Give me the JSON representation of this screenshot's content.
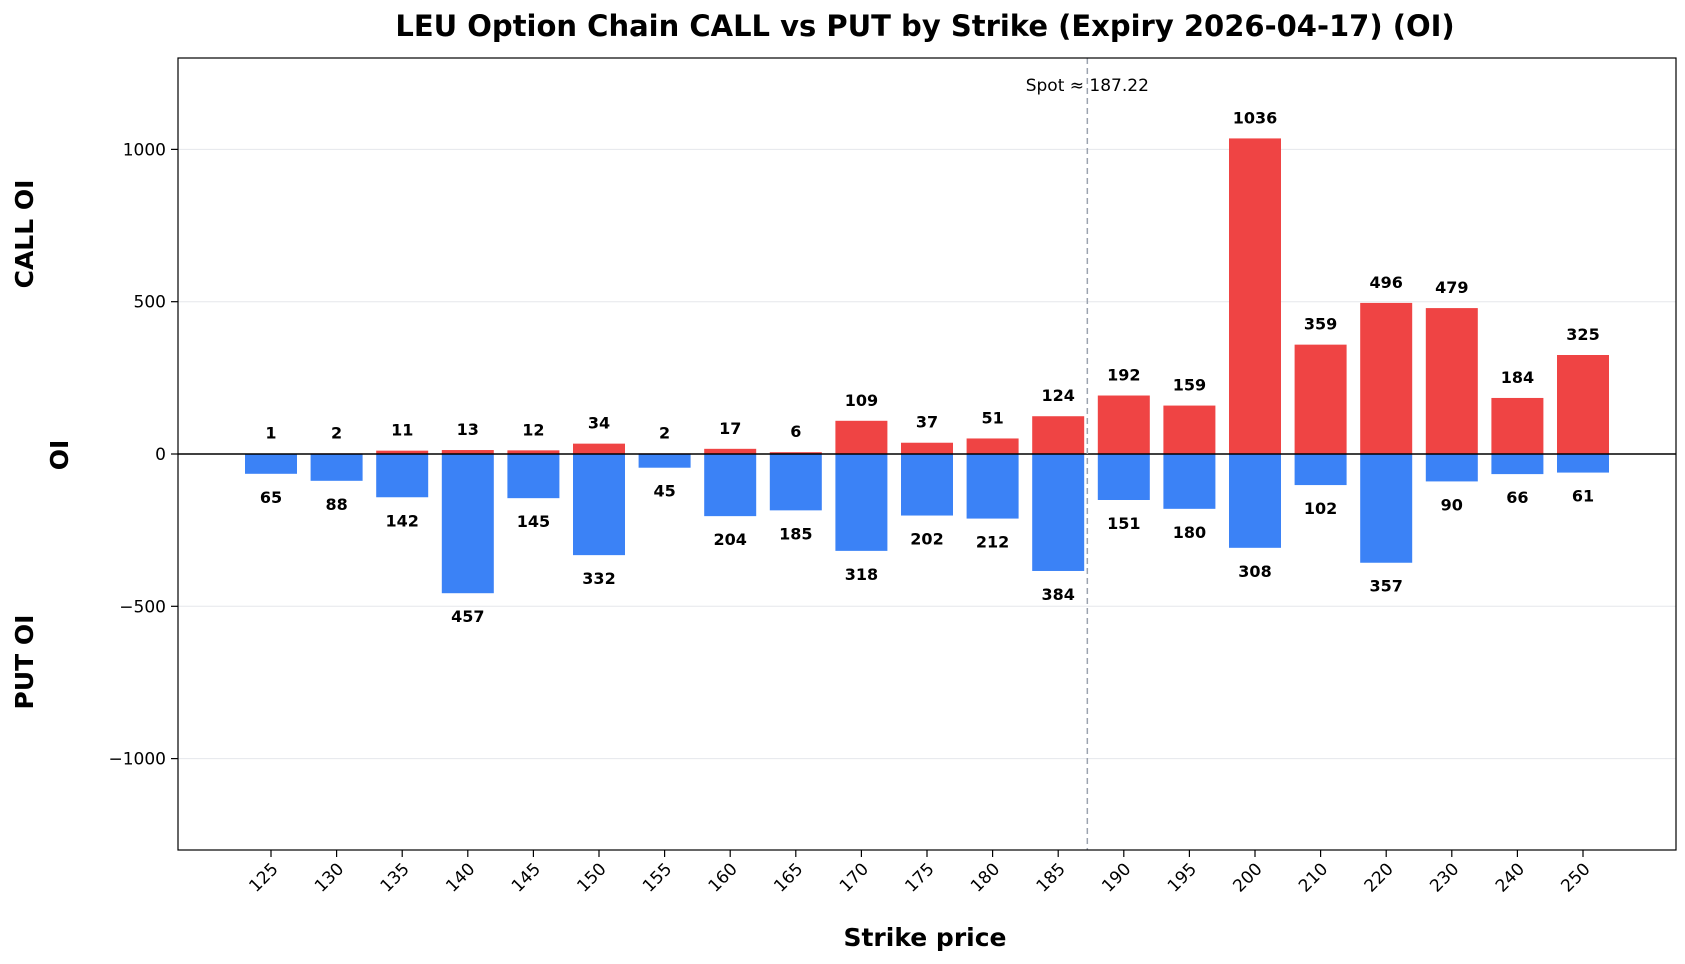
{
  "chart_data": {
    "type": "bar",
    "title": "LEU Option Chain CALL vs PUT by Strike (Expiry 2026-04-17) (OI)",
    "xlabel": "Strike price",
    "ylabel": "OI",
    "ylabel_top": "CALL OI",
    "ylabel_bottom": "PUT OI",
    "ylim": [
      -1300,
      1300
    ],
    "yticks": [
      -1000,
      -500,
      0,
      500,
      1000
    ],
    "grid": true,
    "categories": [
      "125",
      "130",
      "135",
      "140",
      "145",
      "150",
      "155",
      "160",
      "165",
      "170",
      "175",
      "180",
      "185",
      "190",
      "195",
      "200",
      "210",
      "220",
      "230",
      "240",
      "250"
    ],
    "series": [
      {
        "name": "CALL",
        "color": "#ef4444",
        "values": [
          1,
          2,
          11,
          13,
          12,
          34,
          2,
          17,
          6,
          109,
          37,
          51,
          124,
          192,
          159,
          1036,
          359,
          496,
          479,
          184,
          325
        ]
      },
      {
        "name": "PUT",
        "color": "#3b82f6",
        "values": [
          65,
          88,
          142,
          457,
          145,
          332,
          45,
          204,
          185,
          318,
          202,
          212,
          384,
          151,
          180,
          308,
          102,
          357,
          90,
          66,
          61
        ]
      }
    ],
    "spot": {
      "label": "Spot ≈ 187.22",
      "value": 187.22,
      "category_position": 12.444
    }
  }
}
